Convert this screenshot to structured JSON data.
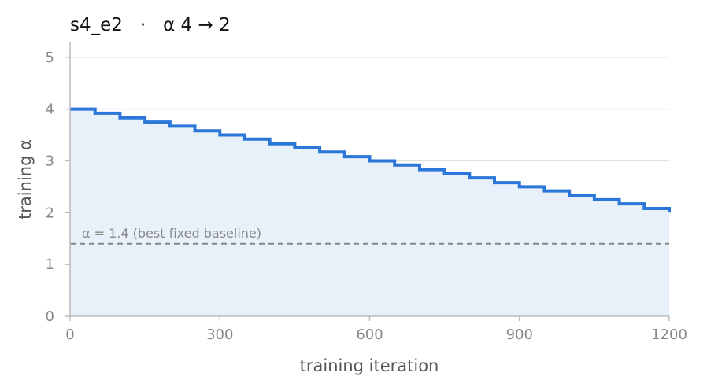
{
  "chart_data": {
    "type": "line",
    "title": "s4_e2   ·   α 4 → 2",
    "xlabel": "training iteration",
    "ylabel": "training α",
    "xlim": [
      0,
      1200
    ],
    "ylim": [
      0,
      5.3
    ],
    "xticks": [
      0,
      300,
      600,
      900,
      1200
    ],
    "yticks": [
      0,
      1,
      2,
      3,
      4,
      5
    ],
    "grid": "horizontal",
    "series": [
      {
        "kind": "step",
        "color": "#2a77d9",
        "fill": "#e8f0fa",
        "x": [
          0,
          50,
          100,
          150,
          200,
          250,
          300,
          350,
          400,
          450,
          500,
          550,
          600,
          650,
          700,
          750,
          800,
          850,
          900,
          950,
          1000,
          1050,
          1100,
          1150,
          1200
        ],
        "y": [
          4.0,
          3.92,
          3.83,
          3.75,
          3.67,
          3.58,
          3.5,
          3.42,
          3.33,
          3.25,
          3.17,
          3.08,
          3.0,
          2.92,
          2.83,
          2.75,
          2.67,
          2.58,
          2.5,
          2.42,
          2.33,
          2.25,
          2.17,
          2.08,
          2.0
        ]
      }
    ],
    "baseline": {
      "value": 1.4,
      "label": "α = 1.4 (best fixed baseline)",
      "color": "#888888"
    }
  }
}
